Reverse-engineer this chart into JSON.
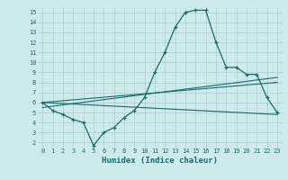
{
  "xlabel": "Humidex (Indice chaleur)",
  "bg_color": "#ceeaea",
  "grid_color": "#aacccc",
  "line_color": "#1a6b6b",
  "x_ticks": [
    0,
    1,
    2,
    3,
    4,
    5,
    6,
    7,
    8,
    9,
    10,
    11,
    12,
    13,
    14,
    15,
    16,
    17,
    18,
    19,
    20,
    21,
    22,
    23
  ],
  "y_ticks": [
    2,
    3,
    4,
    5,
    6,
    7,
    8,
    9,
    10,
    11,
    12,
    13,
    14,
    15
  ],
  "xlim": [
    -0.5,
    23.5
  ],
  "ylim": [
    1.5,
    15.5
  ],
  "series1": [
    6.0,
    5.2,
    4.8,
    4.3,
    4.0,
    1.7,
    3.0,
    3.5,
    4.5,
    5.2,
    6.5,
    9.0,
    11.0,
    13.5,
    15.0,
    15.2,
    15.2,
    12.0,
    9.5,
    9.5,
    8.8,
    8.8,
    6.5,
    5.0
  ],
  "line1_x": [
    0,
    23
  ],
  "line1_y": [
    6.0,
    4.8
  ],
  "line2_x": [
    0,
    23
  ],
  "line2_y": [
    6.0,
    8.0
  ],
  "line3_x": [
    0,
    23
  ],
  "line3_y": [
    5.5,
    8.5
  ]
}
